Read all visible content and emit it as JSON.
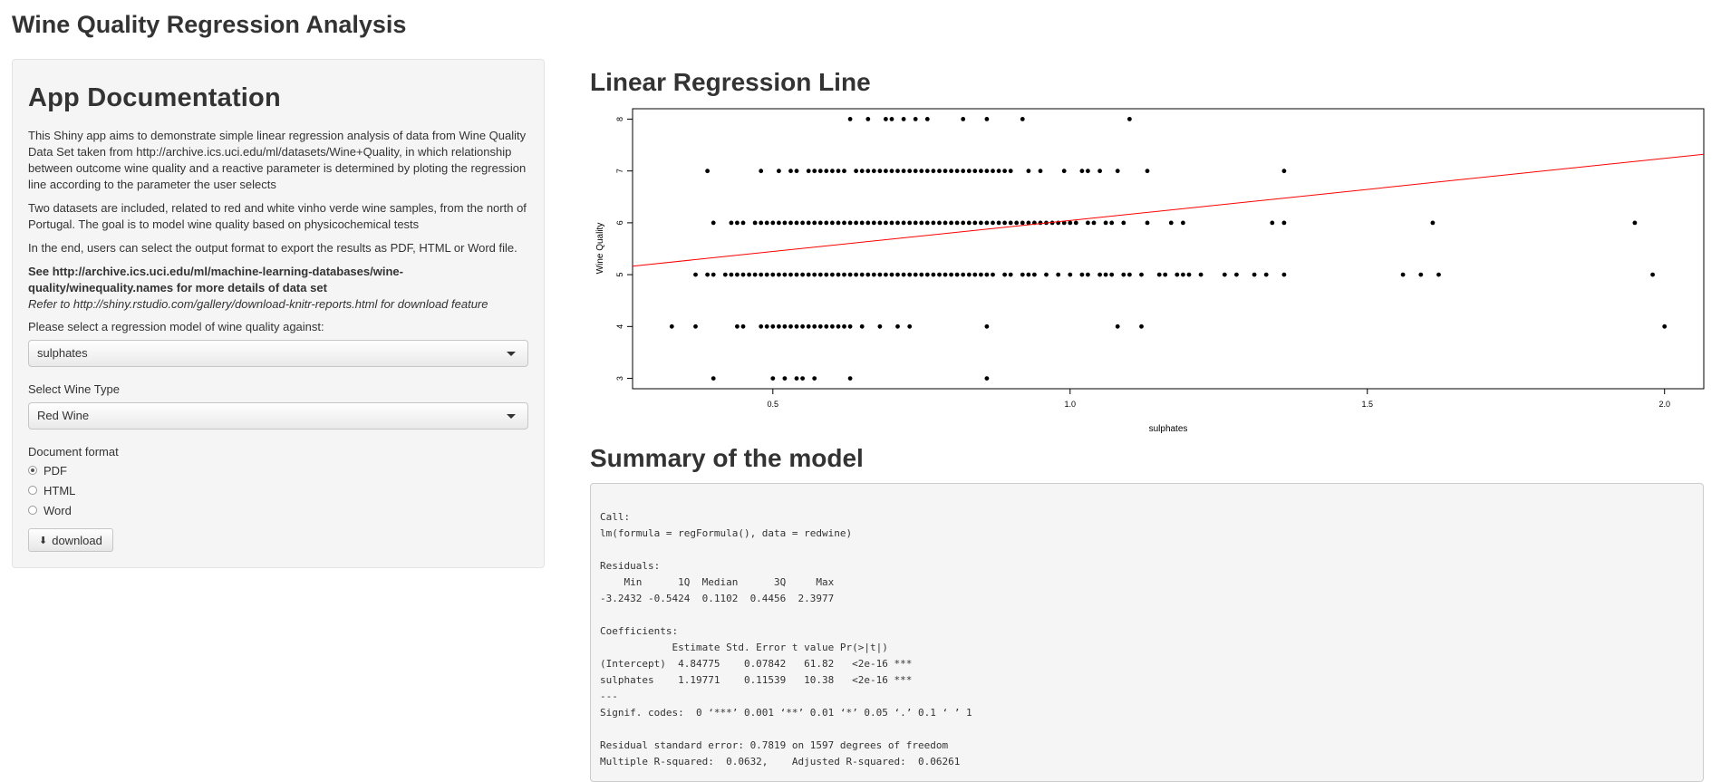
{
  "app": {
    "title": "Wine Quality Regression Analysis"
  },
  "sidebar": {
    "heading": "App Documentation",
    "paragraphs": [
      "This Shiny app aims to demonstrate simple linear regression analysis of data from Wine Quality Data Set taken from http://archive.ics.uci.edu/ml/datasets/Wine+Quality, in which relationship between outcome wine quality and a reactive parameter is determined by ploting the regression line according to the parameter the user selects",
      "Two datasets are included, related to red and white vinho verde wine samples, from the north of Portugal. The goal is to model wine quality based on physicochemical tests",
      "In the end, users can select the output format to export the results as PDF, HTML or Word file."
    ],
    "see_link": "See http://archive.ics.uci.edu/ml/machine-learning-databases/wine-quality/winequality.names for more details of data set",
    "refer_note": "Refer to http://shiny.rstudio.com/gallery/download-knitr-reports.html for download feature",
    "regression_label": "Please select a regression model of wine quality against:",
    "regression_value": "sulphates",
    "wine_type_label": "Select Wine Type",
    "wine_type_value": "Red Wine",
    "format_label": "Document format",
    "formats": [
      {
        "label": "PDF",
        "checked": true
      },
      {
        "label": "HTML",
        "checked": false
      },
      {
        "label": "Word",
        "checked": false
      }
    ],
    "download_label": "download",
    "download_icon": "download-icon"
  },
  "main": {
    "plot_title": "Linear Regression Line",
    "summary_title": "Summary of the model",
    "summary_lines": [
      "Call:",
      "lm(formula = regFormula(), data = redwine)",
      "",
      "Residuals:",
      "    Min      1Q  Median      3Q     Max ",
      "-3.2432 -0.5424  0.1102  0.4456  2.3977 ",
      "",
      "Coefficients:",
      "            Estimate Std. Error t value Pr(>|t|)    ",
      "(Intercept)  4.84775    0.07842   61.82   <2e-16 ***",
      "sulphates    1.19771    0.11539   10.38   <2e-16 ***",
      "---",
      "Signif. codes:  0 ‘***’ 0.001 ‘**’ 0.01 ‘*’ 0.05 ‘.’ 0.1 ‘ ’ 1",
      "",
      "Residual standard error: 0.7819 on 1597 degrees of freedom",
      "Multiple R-squared:  0.0632,\tAdjusted R-squared:  0.06261 "
    ]
  },
  "chart_data": {
    "type": "scatter",
    "xlabel": "sulphates",
    "ylabel": "Wine Quality",
    "xlim": [
      0.33,
      2.0
    ],
    "ylim": [
      3,
      8
    ],
    "x_ticks": [
      "0.5",
      "1.0",
      "1.5",
      "2.0"
    ],
    "y_ticks": [
      "3",
      "4",
      "5",
      "6",
      "7",
      "8"
    ],
    "regression_line": {
      "intercept": 4.84775,
      "slope": 1.19771,
      "color": "#ff0000"
    },
    "point_color": "#000000",
    "points": [
      [
        0.4,
        3
      ],
      [
        0.5,
        3
      ],
      [
        0.52,
        3
      ],
      [
        0.54,
        3
      ],
      [
        0.55,
        3
      ],
      [
        0.57,
        3
      ],
      [
        0.63,
        3
      ],
      [
        0.86,
        3
      ],
      [
        0.33,
        4
      ],
      [
        0.37,
        4
      ],
      [
        0.44,
        4
      ],
      [
        0.45,
        4
      ],
      [
        0.48,
        4
      ],
      [
        0.49,
        4
      ],
      [
        0.5,
        4
      ],
      [
        0.51,
        4
      ],
      [
        0.52,
        4
      ],
      [
        0.53,
        4
      ],
      [
        0.54,
        4
      ],
      [
        0.55,
        4
      ],
      [
        0.56,
        4
      ],
      [
        0.57,
        4
      ],
      [
        0.58,
        4
      ],
      [
        0.59,
        4
      ],
      [
        0.6,
        4
      ],
      [
        0.61,
        4
      ],
      [
        0.62,
        4
      ],
      [
        0.63,
        4
      ],
      [
        0.65,
        4
      ],
      [
        0.68,
        4
      ],
      [
        0.71,
        4
      ],
      [
        0.73,
        4
      ],
      [
        0.86,
        4
      ],
      [
        1.08,
        4
      ],
      [
        1.12,
        4
      ],
      [
        2.0,
        4
      ],
      [
        0.37,
        5
      ],
      [
        0.39,
        5
      ],
      [
        0.4,
        5
      ],
      [
        0.42,
        5
      ],
      [
        0.43,
        5
      ],
      [
        0.44,
        5
      ],
      [
        0.45,
        5
      ],
      [
        0.46,
        5
      ],
      [
        0.47,
        5
      ],
      [
        0.48,
        5
      ],
      [
        0.49,
        5
      ],
      [
        0.5,
        5
      ],
      [
        0.51,
        5
      ],
      [
        0.52,
        5
      ],
      [
        0.53,
        5
      ],
      [
        0.54,
        5
      ],
      [
        0.55,
        5
      ],
      [
        0.56,
        5
      ],
      [
        0.57,
        5
      ],
      [
        0.58,
        5
      ],
      [
        0.59,
        5
      ],
      [
        0.6,
        5
      ],
      [
        0.61,
        5
      ],
      [
        0.62,
        5
      ],
      [
        0.63,
        5
      ],
      [
        0.64,
        5
      ],
      [
        0.65,
        5
      ],
      [
        0.66,
        5
      ],
      [
        0.67,
        5
      ],
      [
        0.68,
        5
      ],
      [
        0.69,
        5
      ],
      [
        0.7,
        5
      ],
      [
        0.71,
        5
      ],
      [
        0.72,
        5
      ],
      [
        0.73,
        5
      ],
      [
        0.74,
        5
      ],
      [
        0.75,
        5
      ],
      [
        0.76,
        5
      ],
      [
        0.77,
        5
      ],
      [
        0.78,
        5
      ],
      [
        0.79,
        5
      ],
      [
        0.8,
        5
      ],
      [
        0.81,
        5
      ],
      [
        0.82,
        5
      ],
      [
        0.83,
        5
      ],
      [
        0.84,
        5
      ],
      [
        0.85,
        5
      ],
      [
        0.86,
        5
      ],
      [
        0.87,
        5
      ],
      [
        0.89,
        5
      ],
      [
        0.9,
        5
      ],
      [
        0.92,
        5
      ],
      [
        0.93,
        5
      ],
      [
        0.94,
        5
      ],
      [
        0.96,
        5
      ],
      [
        0.98,
        5
      ],
      [
        1.0,
        5
      ],
      [
        1.02,
        5
      ],
      [
        1.03,
        5
      ],
      [
        1.05,
        5
      ],
      [
        1.06,
        5
      ],
      [
        1.07,
        5
      ],
      [
        1.09,
        5
      ],
      [
        1.1,
        5
      ],
      [
        1.12,
        5
      ],
      [
        1.15,
        5
      ],
      [
        1.16,
        5
      ],
      [
        1.18,
        5
      ],
      [
        1.19,
        5
      ],
      [
        1.2,
        5
      ],
      [
        1.22,
        5
      ],
      [
        1.26,
        5
      ],
      [
        1.28,
        5
      ],
      [
        1.31,
        5
      ],
      [
        1.33,
        5
      ],
      [
        1.36,
        5
      ],
      [
        1.56,
        5
      ],
      [
        1.59,
        5
      ],
      [
        1.62,
        5
      ],
      [
        1.98,
        5
      ],
      [
        0.4,
        6
      ],
      [
        0.43,
        6
      ],
      [
        0.44,
        6
      ],
      [
        0.45,
        6
      ],
      [
        0.47,
        6
      ],
      [
        0.48,
        6
      ],
      [
        0.49,
        6
      ],
      [
        0.5,
        6
      ],
      [
        0.51,
        6
      ],
      [
        0.52,
        6
      ],
      [
        0.53,
        6
      ],
      [
        0.54,
        6
      ],
      [
        0.55,
        6
      ],
      [
        0.56,
        6
      ],
      [
        0.57,
        6
      ],
      [
        0.58,
        6
      ],
      [
        0.59,
        6
      ],
      [
        0.6,
        6
      ],
      [
        0.61,
        6
      ],
      [
        0.62,
        6
      ],
      [
        0.63,
        6
      ],
      [
        0.64,
        6
      ],
      [
        0.65,
        6
      ],
      [
        0.66,
        6
      ],
      [
        0.67,
        6
      ],
      [
        0.68,
        6
      ],
      [
        0.69,
        6
      ],
      [
        0.7,
        6
      ],
      [
        0.71,
        6
      ],
      [
        0.72,
        6
      ],
      [
        0.73,
        6
      ],
      [
        0.74,
        6
      ],
      [
        0.75,
        6
      ],
      [
        0.76,
        6
      ],
      [
        0.77,
        6
      ],
      [
        0.78,
        6
      ],
      [
        0.79,
        6
      ],
      [
        0.8,
        6
      ],
      [
        0.81,
        6
      ],
      [
        0.82,
        6
      ],
      [
        0.83,
        6
      ],
      [
        0.84,
        6
      ],
      [
        0.85,
        6
      ],
      [
        0.86,
        6
      ],
      [
        0.87,
        6
      ],
      [
        0.88,
        6
      ],
      [
        0.89,
        6
      ],
      [
        0.9,
        6
      ],
      [
        0.91,
        6
      ],
      [
        0.92,
        6
      ],
      [
        0.93,
        6
      ],
      [
        0.94,
        6
      ],
      [
        0.95,
        6
      ],
      [
        0.96,
        6
      ],
      [
        0.97,
        6
      ],
      [
        0.98,
        6
      ],
      [
        0.99,
        6
      ],
      [
        1.0,
        6
      ],
      [
        1.01,
        6
      ],
      [
        1.03,
        6
      ],
      [
        1.04,
        6
      ],
      [
        1.06,
        6
      ],
      [
        1.07,
        6
      ],
      [
        1.09,
        6
      ],
      [
        1.13,
        6
      ],
      [
        1.17,
        6
      ],
      [
        1.19,
        6
      ],
      [
        1.34,
        6
      ],
      [
        1.36,
        6
      ],
      [
        1.61,
        6
      ],
      [
        1.95,
        6
      ],
      [
        0.39,
        7
      ],
      [
        0.48,
        7
      ],
      [
        0.51,
        7
      ],
      [
        0.53,
        7
      ],
      [
        0.54,
        7
      ],
      [
        0.56,
        7
      ],
      [
        0.57,
        7
      ],
      [
        0.58,
        7
      ],
      [
        0.59,
        7
      ],
      [
        0.6,
        7
      ],
      [
        0.61,
        7
      ],
      [
        0.62,
        7
      ],
      [
        0.64,
        7
      ],
      [
        0.65,
        7
      ],
      [
        0.66,
        7
      ],
      [
        0.67,
        7
      ],
      [
        0.68,
        7
      ],
      [
        0.69,
        7
      ],
      [
        0.7,
        7
      ],
      [
        0.71,
        7
      ],
      [
        0.72,
        7
      ],
      [
        0.73,
        7
      ],
      [
        0.74,
        7
      ],
      [
        0.75,
        7
      ],
      [
        0.76,
        7
      ],
      [
        0.77,
        7
      ],
      [
        0.78,
        7
      ],
      [
        0.79,
        7
      ],
      [
        0.8,
        7
      ],
      [
        0.81,
        7
      ],
      [
        0.82,
        7
      ],
      [
        0.83,
        7
      ],
      [
        0.84,
        7
      ],
      [
        0.85,
        7
      ],
      [
        0.86,
        7
      ],
      [
        0.87,
        7
      ],
      [
        0.88,
        7
      ],
      [
        0.89,
        7
      ],
      [
        0.9,
        7
      ],
      [
        0.93,
        7
      ],
      [
        0.95,
        7
      ],
      [
        0.99,
        7
      ],
      [
        1.02,
        7
      ],
      [
        1.03,
        7
      ],
      [
        1.05,
        7
      ],
      [
        1.08,
        7
      ],
      [
        1.13,
        7
      ],
      [
        1.36,
        7
      ],
      [
        0.63,
        8
      ],
      [
        0.66,
        8
      ],
      [
        0.69,
        8
      ],
      [
        0.7,
        8
      ],
      [
        0.72,
        8
      ],
      [
        0.74,
        8
      ],
      [
        0.76,
        8
      ],
      [
        0.82,
        8
      ],
      [
        0.86,
        8
      ],
      [
        0.92,
        8
      ],
      [
        1.1,
        8
      ]
    ]
  }
}
